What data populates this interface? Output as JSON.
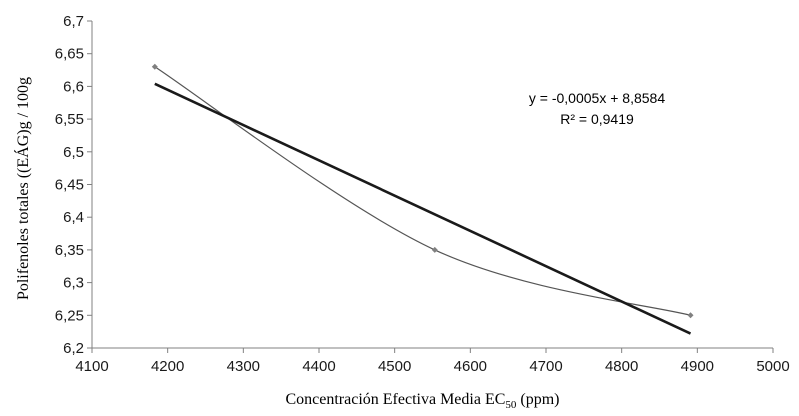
{
  "chart_data": {
    "type": "scatter",
    "xlabel": "Concentración Efectiva Media EC",
    "xlabel_sub": "50",
    "xlabel_unit": "(ppm)",
    "ylabel": "Polifenoles totales ((EÁG)g / 100g",
    "xlim": [
      4100,
      5000
    ],
    "ylim": [
      6.2,
      6.7
    ],
    "x_ticks": [
      "4100",
      "4200",
      "4300",
      "4400",
      "4500",
      "4600",
      "4700",
      "4800",
      "4900",
      "5000"
    ],
    "y_ticks": [
      "6,2",
      "6,25",
      "6,3",
      "6,35",
      "6,4",
      "6,45",
      "6,5",
      "6,55",
      "6,6",
      "6,65",
      "6,7"
    ],
    "grid": false,
    "series": [
      {
        "points": [
          {
            "x": 4183,
            "y": 6.63
          },
          {
            "x": 4553,
            "y": 6.35
          },
          {
            "x": 4891,
            "y": 6.25
          }
        ],
        "color": "#555555"
      }
    ],
    "trendline": {
      "type": "linear",
      "x_range": [
        4183,
        4891
      ],
      "y_range": [
        6.604,
        6.222
      ],
      "color": "#1a1a1a",
      "equation": "y = -0,0005x + 8,8584",
      "r2_label": "R² = 0,9419"
    }
  }
}
